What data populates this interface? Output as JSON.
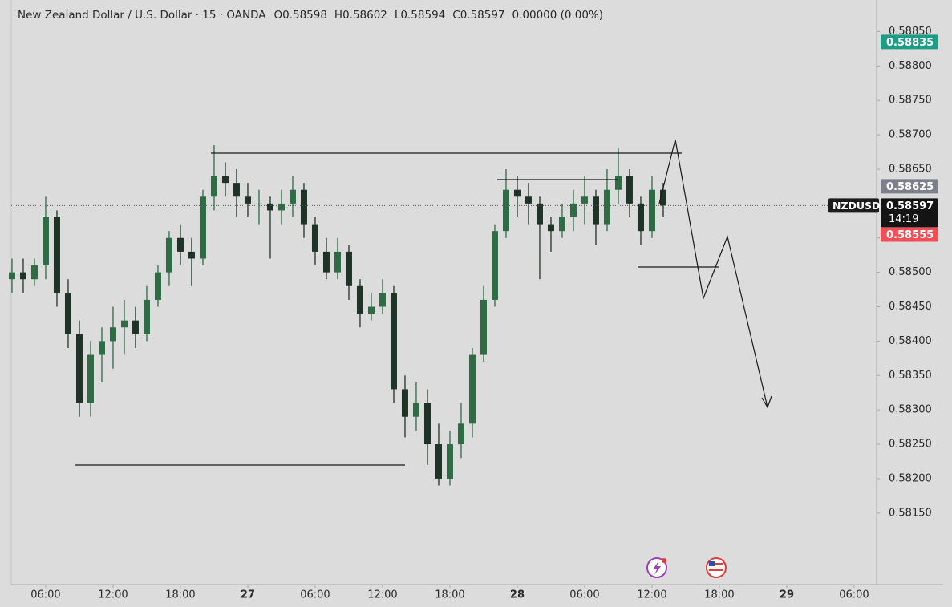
{
  "chart_data": {
    "type": "candlestick",
    "title": "New Zealand Dollar / U.S. Dollar · 15 · OANDA",
    "legend_values": [
      "O0.58598",
      "H0.58602",
      "L0.58594",
      "C0.58597",
      "0.00000 (0.00%)"
    ],
    "x": [
      3,
      4,
      5,
      6,
      7,
      8,
      9,
      10,
      11,
      12,
      13,
      14,
      15,
      16,
      17,
      18,
      19,
      20,
      21,
      22,
      23,
      24,
      25,
      26,
      27,
      28,
      29,
      30,
      31,
      32,
      33,
      34,
      35,
      36,
      37,
      38,
      39,
      40,
      41,
      42,
      43,
      44,
      45,
      46,
      47,
      48,
      49,
      50,
      51,
      52,
      53,
      54,
      55,
      56,
      57,
      58,
      59,
      60,
      61
    ],
    "ohlc": [
      [
        0.5849,
        0.5852,
        0.5847,
        0.585
      ],
      [
        0.585,
        0.5852,
        0.5847,
        0.5849
      ],
      [
        0.5849,
        0.5852,
        0.5848,
        0.5851
      ],
      [
        0.5851,
        0.5861,
        0.5849,
        0.5858
      ],
      [
        0.5858,
        0.5859,
        0.5845,
        0.5847
      ],
      [
        0.5847,
        0.5849,
        0.5839,
        0.5841
      ],
      [
        0.5841,
        0.5843,
        0.5829,
        0.5831
      ],
      [
        0.5831,
        0.584,
        0.5829,
        0.5838
      ],
      [
        0.5838,
        0.5842,
        0.5834,
        0.584
      ],
      [
        0.584,
        0.5845,
        0.5836,
        0.5842
      ],
      [
        0.5842,
        0.5846,
        0.5838,
        0.5843
      ],
      [
        0.5843,
        0.5845,
        0.5839,
        0.5841
      ],
      [
        0.5841,
        0.5848,
        0.584,
        0.5846
      ],
      [
        0.5846,
        0.5851,
        0.5845,
        0.585
      ],
      [
        0.585,
        0.5856,
        0.5848,
        0.5855
      ],
      [
        0.5855,
        0.5857,
        0.5851,
        0.5853
      ],
      [
        0.5853,
        0.5855,
        0.5848,
        0.5852
      ],
      [
        0.5852,
        0.5862,
        0.5851,
        0.5861
      ],
      [
        0.5861,
        0.58685,
        0.5859,
        0.5864
      ],
      [
        0.5864,
        0.5866,
        0.5861,
        0.5863
      ],
      [
        0.5863,
        0.5865,
        0.5858,
        0.5861
      ],
      [
        0.5861,
        0.5863,
        0.5858,
        0.586
      ],
      [
        0.586,
        0.5862,
        0.5857,
        0.586
      ],
      [
        0.586,
        0.5861,
        0.5852,
        0.5859
      ],
      [
        0.5859,
        0.5862,
        0.5857,
        0.586
      ],
      [
        0.586,
        0.5864,
        0.5858,
        0.5862
      ],
      [
        0.5862,
        0.5863,
        0.5855,
        0.5857
      ],
      [
        0.5857,
        0.5858,
        0.5851,
        0.5853
      ],
      [
        0.5853,
        0.5855,
        0.5849,
        0.585
      ],
      [
        0.585,
        0.5855,
        0.5849,
        0.5853
      ],
      [
        0.5853,
        0.5854,
        0.5846,
        0.5848
      ],
      [
        0.5848,
        0.5849,
        0.5842,
        0.5844
      ],
      [
        0.5844,
        0.5847,
        0.5843,
        0.5845
      ],
      [
        0.5845,
        0.5849,
        0.5844,
        0.5847
      ],
      [
        0.5847,
        0.5848,
        0.5831,
        0.5833
      ],
      [
        0.5833,
        0.5835,
        0.5826,
        0.5829
      ],
      [
        0.5829,
        0.5834,
        0.5827,
        0.5831
      ],
      [
        0.5831,
        0.5833,
        0.5822,
        0.5825
      ],
      [
        0.5825,
        0.5828,
        0.5819,
        0.582
      ],
      [
        0.582,
        0.5827,
        0.5819,
        0.5825
      ],
      [
        0.5825,
        0.5831,
        0.5823,
        0.5828
      ],
      [
        0.5828,
        0.5839,
        0.5826,
        0.5838
      ],
      [
        0.5838,
        0.5848,
        0.5837,
        0.5846
      ],
      [
        0.5846,
        0.5857,
        0.5845,
        0.5856
      ],
      [
        0.5856,
        0.5865,
        0.5855,
        0.5862
      ],
      [
        0.5862,
        0.5864,
        0.5858,
        0.5861
      ],
      [
        0.5861,
        0.5863,
        0.5857,
        0.586
      ],
      [
        0.586,
        0.5861,
        0.5849,
        0.5857
      ],
      [
        0.5857,
        0.5858,
        0.5853,
        0.5856
      ],
      [
        0.5856,
        0.586,
        0.5855,
        0.5858
      ],
      [
        0.5858,
        0.5862,
        0.5856,
        0.586
      ],
      [
        0.586,
        0.5864,
        0.5857,
        0.5861
      ],
      [
        0.5861,
        0.5862,
        0.5854,
        0.5857
      ],
      [
        0.5857,
        0.5865,
        0.5856,
        0.5862
      ],
      [
        0.5862,
        0.5868,
        0.586,
        0.5864
      ],
      [
        0.5864,
        0.5865,
        0.5858,
        0.586
      ],
      [
        0.586,
        0.5861,
        0.5854,
        0.5856
      ],
      [
        0.5856,
        0.5864,
        0.5855,
        0.5862
      ],
      [
        0.5862,
        0.5863,
        0.5858,
        0.58597
      ]
    ],
    "up_color": "#2f6b45",
    "down_color": "#1f3326",
    "xlim": [
      2.93,
      79.93
    ],
    "xticks": [
      {
        "value": 6,
        "label": "06:00"
      },
      {
        "value": 12,
        "label": "12:00"
      },
      {
        "value": 18,
        "label": "18:00"
      },
      {
        "value": 24,
        "label": "27"
      },
      {
        "value": 30,
        "label": "06:00"
      },
      {
        "value": 36,
        "label": "12:00"
      },
      {
        "value": 42,
        "label": "18:00"
      },
      {
        "value": 48,
        "label": "28"
      },
      {
        "value": 54,
        "label": "06:00"
      },
      {
        "value": 60,
        "label": "12:00"
      },
      {
        "value": 66,
        "label": "18:00"
      },
      {
        "value": 72,
        "label": "29"
      },
      {
        "value": 78,
        "label": "06:00"
      }
    ],
    "ylim": [
      0.58046,
      0.58896
    ],
    "yticks": [
      {
        "value": 0.5815,
        "label": "0.58150"
      },
      {
        "value": 0.582,
        "label": "0.58200"
      },
      {
        "value": 0.5825,
        "label": "0.58250"
      },
      {
        "value": 0.583,
        "label": "0.58300"
      },
      {
        "value": 0.5835,
        "label": "0.58350"
      },
      {
        "value": 0.584,
        "label": "0.58400"
      },
      {
        "value": 0.5845,
        "label": "0.58450"
      },
      {
        "value": 0.585,
        "label": "0.58500"
      },
      {
        "value": 0.5855,
        "label": "0.58550"
      },
      {
        "value": 0.586,
        "label": "0.58600"
      },
      {
        "value": 0.5865,
        "label": "0.58650"
      },
      {
        "value": 0.587,
        "label": "0.58700"
      },
      {
        "value": 0.5875,
        "label": "0.58750"
      },
      {
        "value": 0.588,
        "label": "0.58800"
      },
      {
        "value": 0.5885,
        "label": "0.58850"
      }
    ],
    "price_tags": [
      {
        "value": 0.58835,
        "color": "#1e9c86"
      },
      {
        "value": 0.58625,
        "color": "#7d808a"
      },
      {
        "value": 0.58555,
        "color": "#ef4f55"
      }
    ],
    "current": {
      "value": 0.58597,
      "symbol": "NZDUSD",
      "countdown": "14:19"
    }
  }
}
